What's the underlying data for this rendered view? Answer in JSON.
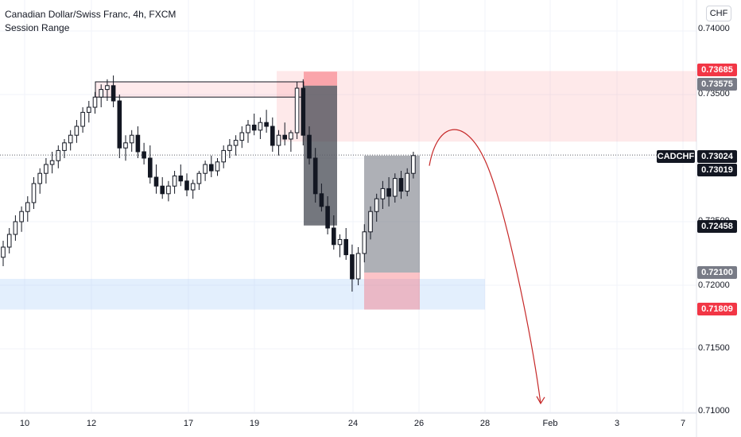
{
  "legend": {
    "symbol_line": "Canadian Dollar/Swiss Franc, 4h, FXCM",
    "indicator": "Session Range"
  },
  "currency": "CHF",
  "y_axis_ticks": [
    "0.74000",
    "0.73500",
    "0.72500",
    "0.72000",
    "0.71500",
    "0.71000"
  ],
  "x_axis_ticks": [
    "10",
    "12",
    "17",
    "19",
    "24",
    "26",
    "28",
    "Feb",
    "3",
    "7"
  ],
  "price_badges": {
    "upper_zone_top": "0.73685",
    "upper_zone_bottom": "0.73575",
    "symbol": "CADCHF",
    "last_price": "0.73024",
    "current_price": "0.73019",
    "mid_level": "0.72458",
    "box_bottom": "0.72100",
    "lower_zone_bottom": "0.71809"
  },
  "colors": {
    "bull_candle": "#ffffff",
    "bear_candle": "#131722",
    "zone_red": "#f7525f",
    "zone_blue": "#90bff9",
    "arrow": "#c62828",
    "badge_red": "#f23645",
    "badge_gray": "#787b86",
    "badge_black": "#131722"
  },
  "chart_data": {
    "type": "candlestick",
    "timeframe": "4h",
    "y_range": [
      0.71,
      0.742
    ],
    "candles": [
      [
        0.7222,
        0.7235,
        0.7215,
        0.723
      ],
      [
        0.723,
        0.7245,
        0.7225,
        0.724
      ],
      [
        0.724,
        0.7255,
        0.7235,
        0.725
      ],
      [
        0.725,
        0.7262,
        0.7242,
        0.7258
      ],
      [
        0.7258,
        0.727,
        0.725,
        0.7265
      ],
      [
        0.7265,
        0.7285,
        0.726,
        0.728
      ],
      [
        0.728,
        0.7292,
        0.7272,
        0.7288
      ],
      [
        0.7288,
        0.73,
        0.728,
        0.7295
      ],
      [
        0.7295,
        0.7305,
        0.7288,
        0.7298
      ],
      [
        0.7298,
        0.731,
        0.7292,
        0.7306
      ],
      [
        0.7306,
        0.7315,
        0.73,
        0.7312
      ],
      [
        0.7312,
        0.7322,
        0.7306,
        0.7318
      ],
      [
        0.7318,
        0.733,
        0.7312,
        0.7325
      ],
      [
        0.7325,
        0.734,
        0.732,
        0.7336
      ],
      [
        0.7336,
        0.7345,
        0.7328,
        0.734
      ],
      [
        0.734,
        0.7352,
        0.7335,
        0.7348
      ],
      [
        0.7348,
        0.7358,
        0.734,
        0.7354
      ],
      [
        0.7354,
        0.7362,
        0.7345,
        0.7357
      ],
      [
        0.7357,
        0.7365,
        0.734,
        0.7345
      ],
      [
        0.7345,
        0.735,
        0.73,
        0.7308
      ],
      [
        0.7308,
        0.7318,
        0.7298,
        0.7312
      ],
      [
        0.7312,
        0.7322,
        0.7305,
        0.7318
      ],
      [
        0.7318,
        0.7325,
        0.73,
        0.7305
      ],
      [
        0.7305,
        0.7312,
        0.7295,
        0.73
      ],
      [
        0.73,
        0.731,
        0.728,
        0.7285
      ],
      [
        0.7285,
        0.7295,
        0.7272,
        0.7278
      ],
      [
        0.7278,
        0.7285,
        0.7268,
        0.7272
      ],
      [
        0.7272,
        0.7282,
        0.7266,
        0.7278
      ],
      [
        0.7278,
        0.729,
        0.7272,
        0.7286
      ],
      [
        0.7286,
        0.7295,
        0.7278,
        0.7282
      ],
      [
        0.7282,
        0.7288,
        0.727,
        0.7275
      ],
      [
        0.7275,
        0.7283,
        0.7268,
        0.728
      ],
      [
        0.728,
        0.729,
        0.7275,
        0.7288
      ],
      [
        0.7288,
        0.7298,
        0.7282,
        0.7295
      ],
      [
        0.7295,
        0.7302,
        0.7285,
        0.729
      ],
      [
        0.729,
        0.73,
        0.7286,
        0.7297
      ],
      [
        0.7297,
        0.731,
        0.7292,
        0.7306
      ],
      [
        0.7306,
        0.7315,
        0.73,
        0.731
      ],
      [
        0.731,
        0.7318,
        0.7302,
        0.7314
      ],
      [
        0.7314,
        0.7325,
        0.7308,
        0.732
      ],
      [
        0.732,
        0.733,
        0.7312,
        0.7326
      ],
      [
        0.7326,
        0.7335,
        0.7318,
        0.7322
      ],
      [
        0.7322,
        0.7332,
        0.7315,
        0.7328
      ],
      [
        0.7328,
        0.7338,
        0.732,
        0.7325
      ],
      [
        0.7325,
        0.7332,
        0.7305,
        0.731
      ],
      [
        0.731,
        0.7322,
        0.7302,
        0.7318
      ],
      [
        0.7318,
        0.7328,
        0.731,
        0.7315
      ],
      [
        0.7315,
        0.7322,
        0.7305,
        0.732
      ],
      [
        0.732,
        0.736,
        0.7315,
        0.7355
      ],
      [
        0.7355,
        0.7362,
        0.731,
        0.7318
      ],
      [
        0.7318,
        0.7325,
        0.7295,
        0.73
      ],
      [
        0.73,
        0.7308,
        0.7265,
        0.7272
      ],
      [
        0.7272,
        0.728,
        0.7258,
        0.7262
      ],
      [
        0.7262,
        0.727,
        0.724,
        0.7245
      ],
      [
        0.7245,
        0.7255,
        0.7228,
        0.7232
      ],
      [
        0.7232,
        0.724,
        0.7222,
        0.7236
      ],
      [
        0.7236,
        0.7245,
        0.722,
        0.7224
      ],
      [
        0.7224,
        0.7232,
        0.7195,
        0.7205
      ],
      [
        0.7205,
        0.723,
        0.72,
        0.7225
      ],
      [
        0.7225,
        0.7248,
        0.7218,
        0.7242
      ],
      [
        0.7242,
        0.7262,
        0.7236,
        0.7258
      ],
      [
        0.7258,
        0.7272,
        0.725,
        0.7268
      ],
      [
        0.7268,
        0.7282,
        0.726,
        0.7276
      ],
      [
        0.7276,
        0.7285,
        0.7262,
        0.727
      ],
      [
        0.727,
        0.7288,
        0.7265,
        0.7284
      ],
      [
        0.7284,
        0.729,
        0.7268,
        0.7274
      ],
      [
        0.7274,
        0.7292,
        0.727,
        0.7288
      ],
      [
        0.7288,
        0.7305,
        0.7284,
        0.7302
      ]
    ],
    "zones": [
      {
        "kind": "upper-red-outline",
        "from": 0.7348,
        "to": 0.736
      },
      {
        "kind": "upper-red-band",
        "from": 0.7313,
        "to": 0.73685
      },
      {
        "kind": "dark-box",
        "from": 0.7247,
        "to": 0.7357
      },
      {
        "kind": "gray-box",
        "from": 0.721,
        "to": 0.7302
      },
      {
        "kind": "lower-red-box",
        "from": 0.71809,
        "to": 0.721
      },
      {
        "kind": "blue-band",
        "from": 0.71809,
        "to": 0.7205
      }
    ],
    "projection": {
      "start": 0.7294,
      "peak": 0.7317,
      "end": 0.7107
    },
    "horizontal_line": 0.73024
  }
}
